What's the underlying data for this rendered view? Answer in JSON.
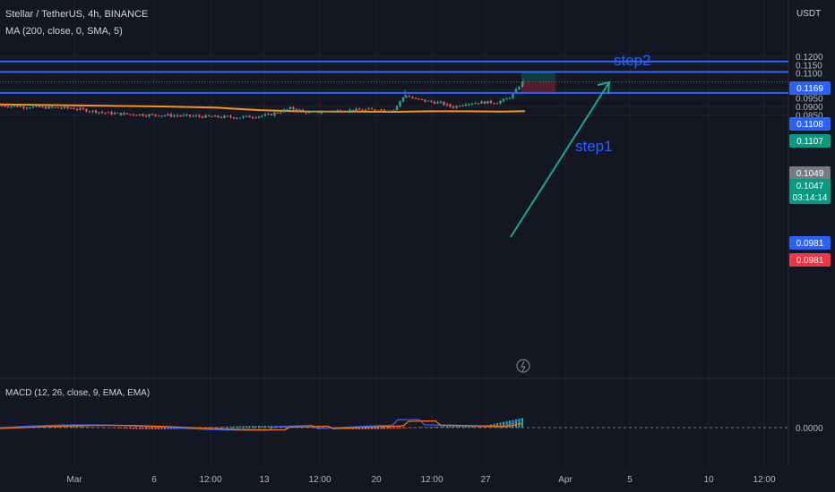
{
  "header": {
    "symbol": "Stellar / TetherUS, 4h, BINANCE",
    "ma_indicator": "MA (200, close, 0, SMA, 5)",
    "macd_indicator": "MACD (12, 26, close, 9, EMA, EMA)",
    "currency": "USDT"
  },
  "colors": {
    "background": "#131722",
    "up": "#26a69a",
    "down": "#ef5350",
    "level_line": "#2962ff",
    "ma": "#f7931a",
    "macd": "#2962ff",
    "signal": "#ff6d00",
    "arrow": "#19a68f",
    "annotation": "#2962ff"
  },
  "chart_data": {
    "type": "candlestick",
    "price_axis": {
      "ticks": [
        "0.1200",
        "0.1150",
        "0.1100",
        "0.1000",
        "0.0950",
        "0.0900",
        "0.0850"
      ]
    },
    "time_axis": {
      "ticks": [
        "Mar",
        "6",
        "12:00",
        "13",
        "12:00",
        "20",
        "12:00",
        "27",
        "Apr",
        "5",
        "10",
        "12:00"
      ]
    },
    "horizontal_levels": [
      {
        "price": 0.1169,
        "label": "0.1169"
      },
      {
        "price": 0.1107,
        "label": "0.1107"
      },
      {
        "price": 0.0981,
        "label": "0.0981"
      }
    ],
    "price_badges": [
      {
        "label": "0.1169",
        "color": "#2962ff"
      },
      {
        "label": "0.1108",
        "color": "#2962ff"
      },
      {
        "label": "0.1107",
        "color": "#089981"
      },
      {
        "label": "0.1049",
        "color": "#787b86"
      },
      {
        "label": "0.1047",
        "sublabel": "03:14:14",
        "color": "#089981"
      },
      {
        "label": "0.0981",
        "color": "#2962ff"
      },
      {
        "label": "0.0981",
        "color": "#f23645"
      }
    ],
    "last_price": 0.1047,
    "annotations": [
      {
        "text": "step1"
      },
      {
        "text": "step2"
      }
    ],
    "position": {
      "entry": 0.1047,
      "target": 0.1107,
      "stop": 0.0981
    },
    "macd_axis": {
      "ticks": [
        "0.0000"
      ]
    }
  }
}
